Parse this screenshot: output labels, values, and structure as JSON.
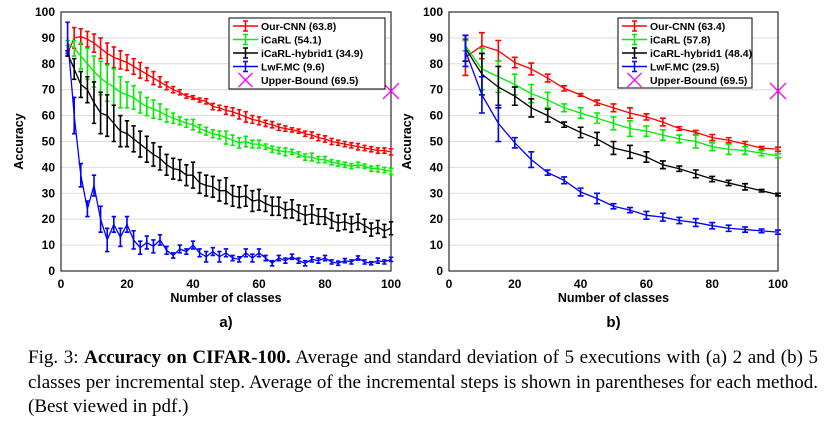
{
  "chart_data": [
    {
      "type": "line",
      "panel_label": "a)",
      "xlabel": "Number of classes",
      "ylabel": "Accuracy",
      "xlim": [
        0,
        100
      ],
      "ylim": [
        0,
        100
      ],
      "xticks": [
        0,
        20,
        40,
        60,
        80,
        100
      ],
      "yticks": [
        0,
        10,
        20,
        30,
        40,
        50,
        60,
        70,
        80,
        90,
        100
      ],
      "grid": "horizontal",
      "legend_position": "top-right",
      "x": [
        2,
        4,
        6,
        8,
        10,
        12,
        14,
        16,
        18,
        20,
        22,
        24,
        26,
        28,
        30,
        32,
        34,
        36,
        38,
        40,
        42,
        44,
        46,
        48,
        50,
        52,
        54,
        56,
        58,
        60,
        62,
        64,
        66,
        68,
        70,
        72,
        74,
        76,
        78,
        80,
        82,
        84,
        86,
        88,
        90,
        92,
        94,
        96,
        98,
        100
      ],
      "series": [
        {
          "name": "Our-CNN (63.8)",
          "color": "#ff0000",
          "values": [
            84,
            90,
            90.5,
            89.5,
            88,
            86,
            84,
            82.5,
            81.5,
            80.5,
            79,
            77.5,
            76,
            74.5,
            73,
            71.5,
            70,
            69,
            67.5,
            67,
            66,
            65.5,
            63.5,
            63,
            62,
            61.5,
            60.5,
            59.5,
            58.5,
            58,
            57,
            56.5,
            55.5,
            55,
            54.5,
            54,
            53,
            52.5,
            51.5,
            51,
            50,
            49.5,
            49,
            48.5,
            48,
            47.5,
            47,
            46.5,
            46.5,
            46
          ],
          "errors": [
            1,
            4,
            3,
            3,
            3.5,
            4,
            4,
            4,
            3.5,
            3,
            3,
            3,
            2.5,
            2.5,
            2,
            1.5,
            1.2,
            1,
            0.8,
            0.7,
            0.8,
            1,
            1.2,
            1,
            1.5,
            1.5,
            1.8,
            2,
            1.5,
            1.5,
            1.2,
            1.2,
            1.2,
            1,
            0.8,
            0.8,
            1,
            1.2,
            1.2,
            1.2,
            1.2,
            1,
            1,
            1,
            1.2,
            1,
            1,
            1,
            1,
            1.2
          ]
        },
        {
          "name": "iCaRL (54.1)",
          "color": "#00ee00",
          "values": [
            88,
            86,
            83,
            80,
            77,
            74.5,
            72.5,
            71,
            69,
            68,
            67,
            65,
            63.5,
            62.5,
            61.5,
            60,
            59,
            58,
            57,
            56.5,
            55,
            54,
            53,
            52.5,
            51.5,
            50.5,
            49.5,
            50,
            49,
            49,
            48,
            47,
            46.5,
            46,
            46,
            45,
            44,
            44,
            43,
            43,
            42,
            41.5,
            41,
            40.5,
            41,
            40.5,
            39.5,
            39.5,
            39,
            38.5
          ],
          "errors": [
            1,
            3,
            5,
            6,
            6,
            6.5,
            7,
            7,
            6,
            5,
            4.5,
            4,
            3.5,
            3.5,
            3,
            2.5,
            2,
            1.5,
            1.5,
            2,
            1.5,
            1.5,
            1.5,
            1.5,
            2.5,
            2,
            2,
            2,
            1.5,
            1.5,
            1,
            1.2,
            1.2,
            1.5,
            1,
            1,
            1.2,
            1.5,
            1.2,
            1.2,
            1,
            1,
            1,
            1,
            1,
            0.8,
            1,
            1.2,
            1,
            1.2
          ]
        },
        {
          "name": "iCaRL-hybrid1 (34.9)",
          "color": "#000000",
          "values": [
            84,
            78,
            72,
            70,
            65,
            61,
            60,
            57,
            54,
            53,
            51,
            49,
            47,
            45,
            43.5,
            41,
            39.5,
            39,
            37,
            37,
            34,
            33,
            32.5,
            31,
            31,
            29,
            28.5,
            29,
            27,
            27.5,
            26,
            25,
            25,
            23.5,
            24,
            22.5,
            21.5,
            22,
            21,
            21,
            19.5,
            18.5,
            19,
            18,
            19,
            17.5,
            16,
            17,
            15.5,
            16.5
          ],
          "errors": [
            1,
            4,
            5,
            5,
            8,
            8,
            8,
            7,
            6,
            5,
            5,
            5,
            5,
            4.5,
            4.5,
            4,
            4,
            4,
            4,
            5,
            4,
            4,
            4,
            4,
            5,
            4,
            4,
            4,
            4,
            4,
            3,
            3.5,
            3.5,
            3,
            3.5,
            3,
            3.5,
            3.5,
            3,
            3,
            3,
            3,
            3,
            3,
            3,
            2.5,
            2.5,
            2.5,
            2.5,
            2.5
          ]
        },
        {
          "name": "LwF.MC (9.6)",
          "color": "#0000ff",
          "values": [
            90,
            60,
            37,
            24,
            33,
            20,
            12,
            18,
            13,
            18,
            12,
            9,
            11,
            9.5,
            12,
            8,
            6,
            8.5,
            7.5,
            10,
            7,
            5.5,
            7.5,
            5.5,
            7,
            5,
            4.5,
            7,
            5,
            7,
            5,
            3,
            5,
            4,
            5.5,
            4,
            3,
            4.5,
            4,
            5,
            3.5,
            3,
            4,
            3.5,
            5,
            3.5,
            3,
            4,
            3.5,
            4.5
          ],
          "errors": [
            6,
            7,
            4.5,
            3,
            4,
            5,
            4.5,
            3,
            3.5,
            3,
            3.5,
            2.5,
            2.5,
            2.5,
            2,
            1.5,
            1,
            1.5,
            1,
            1.5,
            1.5,
            2,
            1.5,
            2,
            1.5,
            1,
            1,
            1.5,
            1.5,
            1.5,
            1,
            1,
            1,
            1,
            1,
            1,
            1,
            1,
            1,
            1,
            0.8,
            0.8,
            0.8,
            0.8,
            0.8,
            0.8,
            0.6,
            1,
            0.8,
            0.8
          ]
        }
      ],
      "upper_bound": {
        "name": "Upper-Bound (69.5)",
        "color": "#ff00ff",
        "x": 100,
        "value": 69.5
      }
    },
    {
      "type": "line",
      "panel_label": "b)",
      "xlabel": "Number of classes",
      "ylabel": "Accuracy",
      "xlim": [
        0,
        100
      ],
      "ylim": [
        0,
        100
      ],
      "xticks": [
        0,
        20,
        40,
        60,
        80,
        100
      ],
      "yticks": [
        0,
        10,
        20,
        30,
        40,
        50,
        60,
        70,
        80,
        90,
        100
      ],
      "grid": "horizontal",
      "legend_position": "top-right",
      "x": [
        5,
        10,
        15,
        20,
        25,
        30,
        35,
        40,
        45,
        50,
        55,
        60,
        65,
        70,
        75,
        80,
        85,
        90,
        95,
        100
      ],
      "series": [
        {
          "name": "Our-CNN (63.4)",
          "color": "#ff0000",
          "values": [
            82.5,
            87,
            85,
            80.5,
            78,
            74.5,
            70.5,
            68,
            65,
            63,
            61,
            59.5,
            57.5,
            55,
            53.5,
            51.5,
            50.5,
            49,
            47.5,
            47
          ],
          "errors": [
            7,
            5,
            4,
            2,
            2.3,
            1.5,
            1,
            0.5,
            1,
            1.5,
            2,
            1.2,
            1.5,
            0.7,
            0.8,
            1.2,
            1,
            1,
            0.6,
            0.8
          ]
        },
        {
          "name": "iCaRL (57.8)",
          "color": "#00ee00",
          "values": [
            87,
            78,
            75,
            72,
            68.5,
            66,
            63,
            61,
            59,
            57,
            55,
            54,
            52.5,
            51,
            50,
            48,
            47,
            46.5,
            45.5,
            44.5
          ],
          "errors": [
            2,
            8,
            6,
            4,
            3.5,
            3,
            1.5,
            2,
            2,
            2.5,
            3,
            2,
            2,
            1.5,
            2.5,
            1.5,
            2,
            1.5,
            1,
            0.8
          ]
        },
        {
          "name": "iCaRL-hybrid1 (48.4)",
          "color": "#000000",
          "values": [
            86,
            76,
            71,
            67.5,
            63,
            60,
            56.5,
            53.5,
            51,
            47.5,
            46,
            44,
            41,
            39.5,
            37.5,
            35.5,
            34,
            32.5,
            31,
            29.5
          ],
          "errors": [
            5,
            8,
            8,
            3.5,
            3.5,
            2.5,
            1,
            2,
            2.5,
            2.5,
            2.5,
            2,
            1.5,
            1,
            1.5,
            1,
            1,
            1.2,
            0.5,
            0.5
          ]
        },
        {
          "name": "LwF.MC (29.5)",
          "color": "#0000ff",
          "values": [
            85,
            68,
            57,
            49.5,
            43,
            38,
            35,
            30.5,
            28,
            25,
            23.5,
            21.5,
            20.8,
            19.5,
            18.7,
            17.5,
            16.5,
            16,
            15.5,
            15
          ],
          "errors": [
            6,
            7,
            7,
            2,
            3,
            1,
            1.3,
            1.5,
            2,
            1,
            1,
            1.5,
            1.5,
            1.2,
            1.5,
            1.2,
            1.2,
            1,
            0.7,
            0.8
          ]
        }
      ],
      "upper_bound": {
        "name": "Upper-Bound (69.5)",
        "color": "#ff00ff",
        "x": 100,
        "value": 69.5
      }
    }
  ],
  "caption": {
    "prefix": "Fig. 3: ",
    "bold": "Accuracy on CIFAR-100.",
    "text": " Average and standard deviation of 5 executions with (a) 2 and (b) 5 classes per incremental step. Average of the incremental steps is shown in parentheses for each method. (Best viewed in pdf.)"
  }
}
